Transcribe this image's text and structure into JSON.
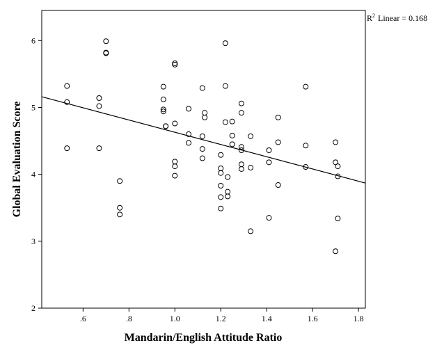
{
  "chart_data": {
    "type": "scatter",
    "xlabel": "Mandarin/English Attitude Ratio",
    "ylabel": "Global Evaluation Score",
    "xlim": [
      0.42,
      1.83
    ],
    "ylim": [
      2,
      6.45
    ],
    "xticks": [
      {
        "value": 0.6,
        "label": ".6"
      },
      {
        "value": 0.8,
        "label": ".8"
      },
      {
        "value": 1.0,
        "label": "1.0"
      },
      {
        "value": 1.2,
        "label": "1.2"
      },
      {
        "value": 1.4,
        "label": "1.4"
      },
      {
        "value": 1.6,
        "label": "1.6"
      },
      {
        "value": 1.8,
        "label": "1.8"
      }
    ],
    "yticks": [
      {
        "value": 2,
        "label": "2"
      },
      {
        "value": 3,
        "label": "3"
      },
      {
        "value": 4,
        "label": "4"
      },
      {
        "value": 5,
        "label": "5"
      },
      {
        "value": 6,
        "label": "6"
      }
    ],
    "grid": false,
    "fit_line": {
      "type": "linear",
      "label_prefix": "R",
      "label_sup": "2",
      "label_text": "Linear = 0.168",
      "x": [
        0.42,
        1.83
      ],
      "y": [
        5.16,
        3.87
      ]
    },
    "points": [
      {
        "x": 0.53,
        "y": 5.32
      },
      {
        "x": 0.53,
        "y": 5.08
      },
      {
        "x": 0.53,
        "y": 4.39
      },
      {
        "x": 0.67,
        "y": 5.14
      },
      {
        "x": 0.67,
        "y": 5.02
      },
      {
        "x": 0.67,
        "y": 4.39
      },
      {
        "x": 0.7,
        "y": 5.99
      },
      {
        "x": 0.7,
        "y": 5.82
      },
      {
        "x": 0.7,
        "y": 5.81
      },
      {
        "x": 0.76,
        "y": 3.9
      },
      {
        "x": 0.76,
        "y": 3.5
      },
      {
        "x": 0.76,
        "y": 3.4
      },
      {
        "x": 0.95,
        "y": 5.31
      },
      {
        "x": 0.95,
        "y": 5.12
      },
      {
        "x": 0.95,
        "y": 4.97
      },
      {
        "x": 0.95,
        "y": 4.94
      },
      {
        "x": 0.96,
        "y": 4.72
      },
      {
        "x": 0.96,
        "y": 4.72
      },
      {
        "x": 1.0,
        "y": 5.66
      },
      {
        "x": 1.0,
        "y": 5.64
      },
      {
        "x": 1.0,
        "y": 4.76
      },
      {
        "x": 1.0,
        "y": 4.19
      },
      {
        "x": 1.0,
        "y": 4.12
      },
      {
        "x": 1.0,
        "y": 3.98
      },
      {
        "x": 1.06,
        "y": 4.98
      },
      {
        "x": 1.06,
        "y": 4.6
      },
      {
        "x": 1.06,
        "y": 4.47
      },
      {
        "x": 1.12,
        "y": 5.29
      },
      {
        "x": 1.13,
        "y": 4.92
      },
      {
        "x": 1.13,
        "y": 4.85
      },
      {
        "x": 1.12,
        "y": 4.57
      },
      {
        "x": 1.12,
        "y": 4.38
      },
      {
        "x": 1.12,
        "y": 4.24
      },
      {
        "x": 1.22,
        "y": 5.96
      },
      {
        "x": 1.22,
        "y": 5.32
      },
      {
        "x": 1.22,
        "y": 4.78
      },
      {
        "x": 1.25,
        "y": 4.79
      },
      {
        "x": 1.25,
        "y": 4.58
      },
      {
        "x": 1.25,
        "y": 4.45
      },
      {
        "x": 1.2,
        "y": 4.29
      },
      {
        "x": 1.2,
        "y": 4.09
      },
      {
        "x": 1.2,
        "y": 4.02
      },
      {
        "x": 1.2,
        "y": 3.83
      },
      {
        "x": 1.2,
        "y": 3.66
      },
      {
        "x": 1.2,
        "y": 3.49
      },
      {
        "x": 1.23,
        "y": 3.96
      },
      {
        "x": 1.23,
        "y": 3.74
      },
      {
        "x": 1.23,
        "y": 3.67
      },
      {
        "x": 1.29,
        "y": 5.06
      },
      {
        "x": 1.29,
        "y": 4.92
      },
      {
        "x": 1.29,
        "y": 4.41
      },
      {
        "x": 1.29,
        "y": 4.36
      },
      {
        "x": 1.29,
        "y": 4.15
      },
      {
        "x": 1.29,
        "y": 4.08
      },
      {
        "x": 1.33,
        "y": 4.57
      },
      {
        "x": 1.33,
        "y": 4.1
      },
      {
        "x": 1.33,
        "y": 3.15
      },
      {
        "x": 1.41,
        "y": 4.36
      },
      {
        "x": 1.41,
        "y": 4.18
      },
      {
        "x": 1.41,
        "y": 3.35
      },
      {
        "x": 1.45,
        "y": 4.85
      },
      {
        "x": 1.45,
        "y": 4.48
      },
      {
        "x": 1.45,
        "y": 3.84
      },
      {
        "x": 1.57,
        "y": 5.31
      },
      {
        "x": 1.57,
        "y": 4.43
      },
      {
        "x": 1.57,
        "y": 4.11
      },
      {
        "x": 1.7,
        "y": 4.48
      },
      {
        "x": 1.7,
        "y": 4.18
      },
      {
        "x": 1.7,
        "y": 2.85
      },
      {
        "x": 1.71,
        "y": 4.12
      },
      {
        "x": 1.71,
        "y": 3.97
      },
      {
        "x": 1.71,
        "y": 3.34
      }
    ]
  }
}
